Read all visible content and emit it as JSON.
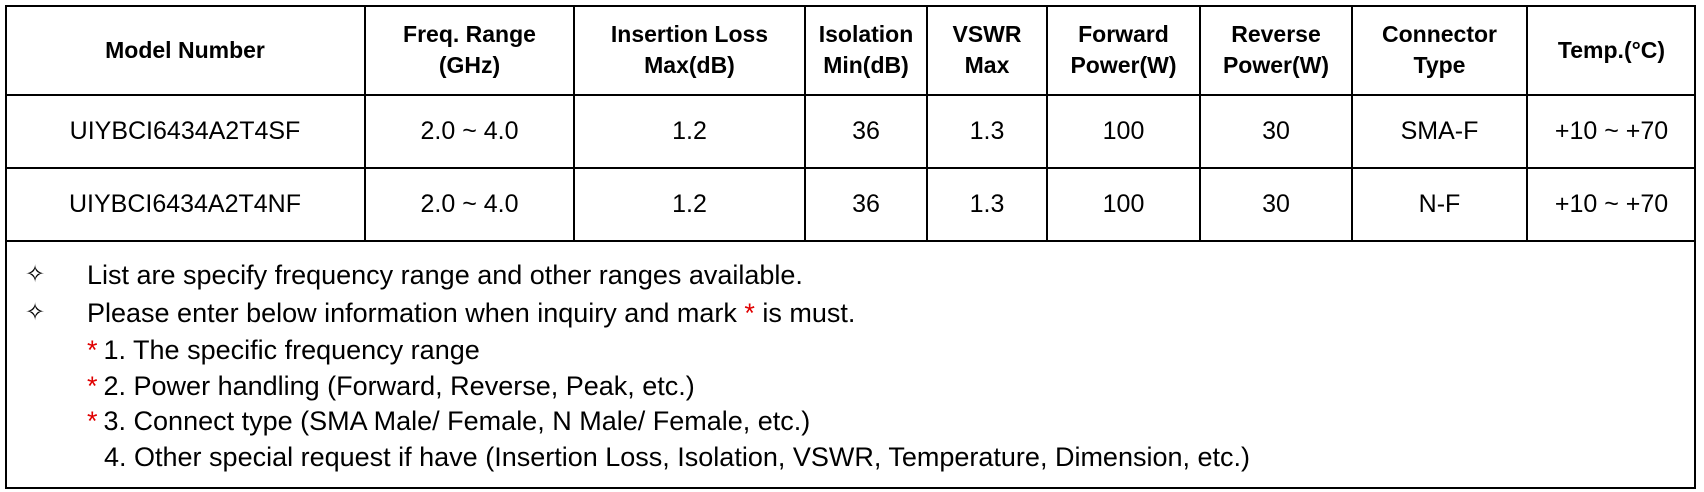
{
  "table": {
    "header": [
      [
        "Model Number"
      ],
      [
        "Freq. Range",
        "(GHz)"
      ],
      [
        "Insertion Loss",
        "Max(dB)"
      ],
      [
        "Isolation",
        "Min(dB)"
      ],
      [
        "VSWR",
        "Max"
      ],
      [
        "Forward",
        "Power(W)"
      ],
      [
        "Reverse",
        "Power(W)"
      ],
      [
        "Connector",
        "Type"
      ],
      [
        "Temp.(°C)"
      ]
    ],
    "rows": [
      [
        "UIYBCI6434A2T4SF",
        "2.0 ~ 4.0",
        "1.2",
        "36",
        "1.3",
        "100",
        "30",
        "SMA-F",
        "+10 ~ +70"
      ],
      [
        "UIYBCI6434A2T4NF",
        "2.0 ~ 4.0",
        "1.2",
        "36",
        "1.3",
        "100",
        "30",
        "N-F",
        "+10 ~ +70"
      ]
    ]
  },
  "notes": {
    "bullets": [
      [
        "List are specify frequency range and other ranges available."
      ],
      [
        "Please enter below information when inquiry and mark ",
        "*",
        " is must."
      ]
    ],
    "items": [
      {
        "marker": "*",
        "text": "1. The specific frequency range"
      },
      {
        "marker": "*",
        "text": "2. Power handling (Forward, Reverse, Peak, etc.)"
      },
      {
        "marker": "*",
        "text": "3. Connect type (SMA Male/ Female, N Male/ Female, etc.)"
      },
      {
        "text": "4. Other special request if have (Insertion Loss, Isolation, VSWR, Temperature, Dimension, etc.)"
      }
    ]
  }
}
